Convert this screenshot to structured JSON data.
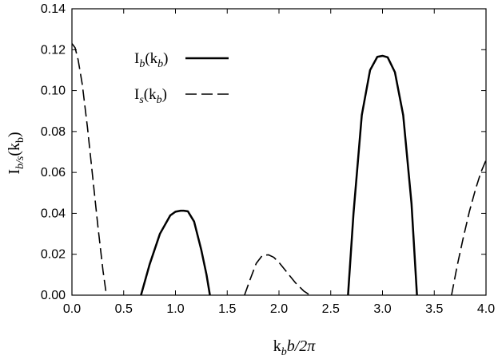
{
  "chart_data": {
    "type": "line",
    "xlabel": {
      "main": "k",
      "sub": "b",
      "rest": "b/2π"
    },
    "ylabel": {
      "main": "I",
      "sub": "b/s",
      "paren_open": "(k",
      "paren_sub": "b",
      "paren_close": ")"
    },
    "xlim": [
      0.0,
      4.0
    ],
    "ylim": [
      0.0,
      0.14
    ],
    "x_ticks": [
      "0.0",
      "0.5",
      "1.0",
      "1.5",
      "2.0",
      "2.5",
      "3.0",
      "3.5",
      "4.0"
    ],
    "y_ticks": [
      "0.00",
      "0.02",
      "0.04",
      "0.06",
      "0.08",
      "0.10",
      "0.12",
      "0.14"
    ],
    "grid": false,
    "legend_placement": "top-center",
    "series": [
      {
        "name": "I_b(k_b)",
        "legend": {
          "main": "I",
          "sub": "b",
          "paren_open": "(k",
          "paren_sub": "b",
          "paren_close": ")"
        },
        "style": "solid",
        "color": "#000000",
        "segments": [
          {
            "x": [
              0.667,
              0.75,
              0.85,
              0.95,
              1.0,
              1.05,
              1.08,
              1.12,
              1.18,
              1.25,
              1.3,
              1.333
            ],
            "y": [
              0.0,
              0.015,
              0.03,
              0.039,
              0.0408,
              0.0413,
              0.0413,
              0.041,
              0.036,
              0.022,
              0.01,
              0.0
            ]
          },
          {
            "x": [
              2.667,
              2.72,
              2.8,
              2.88,
              2.95,
              3.0,
              3.05,
              3.12,
              3.2,
              3.28,
              3.333
            ],
            "y": [
              0.0,
              0.04,
              0.088,
              0.11,
              0.1165,
              0.117,
              0.1163,
              0.109,
              0.088,
              0.045,
              0.0
            ]
          }
        ]
      },
      {
        "name": "I_s(k_b)",
        "legend": {
          "main": "I",
          "sub": "s",
          "paren_open": "(k",
          "paren_sub": "b",
          "paren_close": ")"
        },
        "style": "dashed",
        "color": "#000000",
        "segments": [
          {
            "x": [
              0.0,
              0.03,
              0.06,
              0.1,
              0.15,
              0.2,
              0.25,
              0.3,
              0.333
            ],
            "y": [
              0.123,
              0.121,
              0.115,
              0.103,
              0.082,
              0.058,
              0.034,
              0.012,
              0.0
            ]
          },
          {
            "x": [
              1.667,
              1.72,
              1.78,
              1.84,
              1.9,
              1.95,
              2.0,
              2.08,
              2.16,
              2.24,
              2.3
            ],
            "y": [
              0.0,
              0.0075,
              0.0155,
              0.0195,
              0.0197,
              0.0185,
              0.016,
              0.011,
              0.006,
              0.002,
              0.0
            ]
          },
          {
            "x": [
              3.667,
              3.72,
              3.78,
              3.84,
              3.9,
              3.95,
              4.0
            ],
            "y": [
              0.0,
              0.014,
              0.028,
              0.041,
              0.052,
              0.06,
              0.066
            ]
          }
        ]
      }
    ]
  }
}
